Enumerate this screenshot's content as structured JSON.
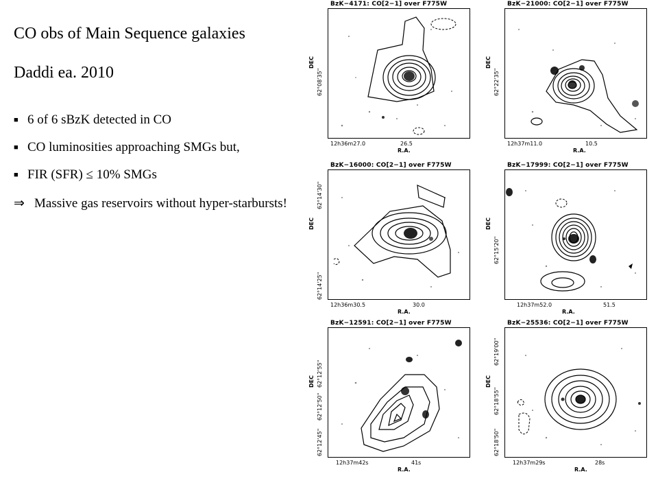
{
  "slide": {
    "title": "CO obs of Main Sequence galaxies",
    "subtitle": "Daddi ea. 2010",
    "bullets": [
      "6 of 6 sBzK detected in CO",
      "CO luminosities approaching SMGs but,",
      "FIR (SFR) ≤ 10% SMGs"
    ],
    "conclusion": "Massive gas reservoirs without hyper-starbursts!"
  },
  "panels": [
    {
      "title": "BzK−4171: CO[2−1] over F775W",
      "ylabel": "DEC",
      "xlabel": "R.A.",
      "yticks": [
        "62°08'35\""
      ],
      "xticks": [
        "12h36m27.0",
        "26.5"
      ]
    },
    {
      "title": "BzK−21000: CO[2−1] over F775W",
      "ylabel": "DEC",
      "xlabel": "R.A.",
      "yticks": [
        "62°22'35\""
      ],
      "xticks": [
        "12h37m11.0",
        "10.5"
      ]
    },
    {
      "title": "BzK−16000: CO[2−1] over F775W",
      "ylabel": "DEC",
      "xlabel": "R.A.",
      "yticks": [
        "62°14'30\"",
        "62°14'25\""
      ],
      "xticks": [
        "12h36m30.5",
        "30.0"
      ]
    },
    {
      "title": "BzK−17999: CO[2−1] over F775W",
      "ylabel": "DEC",
      "xlabel": "R.A.",
      "yticks": [
        "62°15'20\""
      ],
      "xticks": [
        "12h37m52.0",
        "51.5"
      ]
    },
    {
      "title": "BzK−12591: CO[2−1] over F775W",
      "ylabel": "DEC",
      "xlabel": "R.A.",
      "yticks": [
        "62°12'55\"",
        "62°12'50\"",
        "62°12'45\""
      ],
      "xticks": [
        "12h37m42s",
        "41s"
      ]
    },
    {
      "title": "BzK−25536: CO[2−1] over F775W",
      "ylabel": "DEC",
      "xlabel": "R.A.",
      "yticks": [
        "62°19'00\"",
        "62°18'55\"",
        "62°18'50\""
      ],
      "xticks": [
        "12h37m29s",
        "28s"
      ]
    }
  ]
}
